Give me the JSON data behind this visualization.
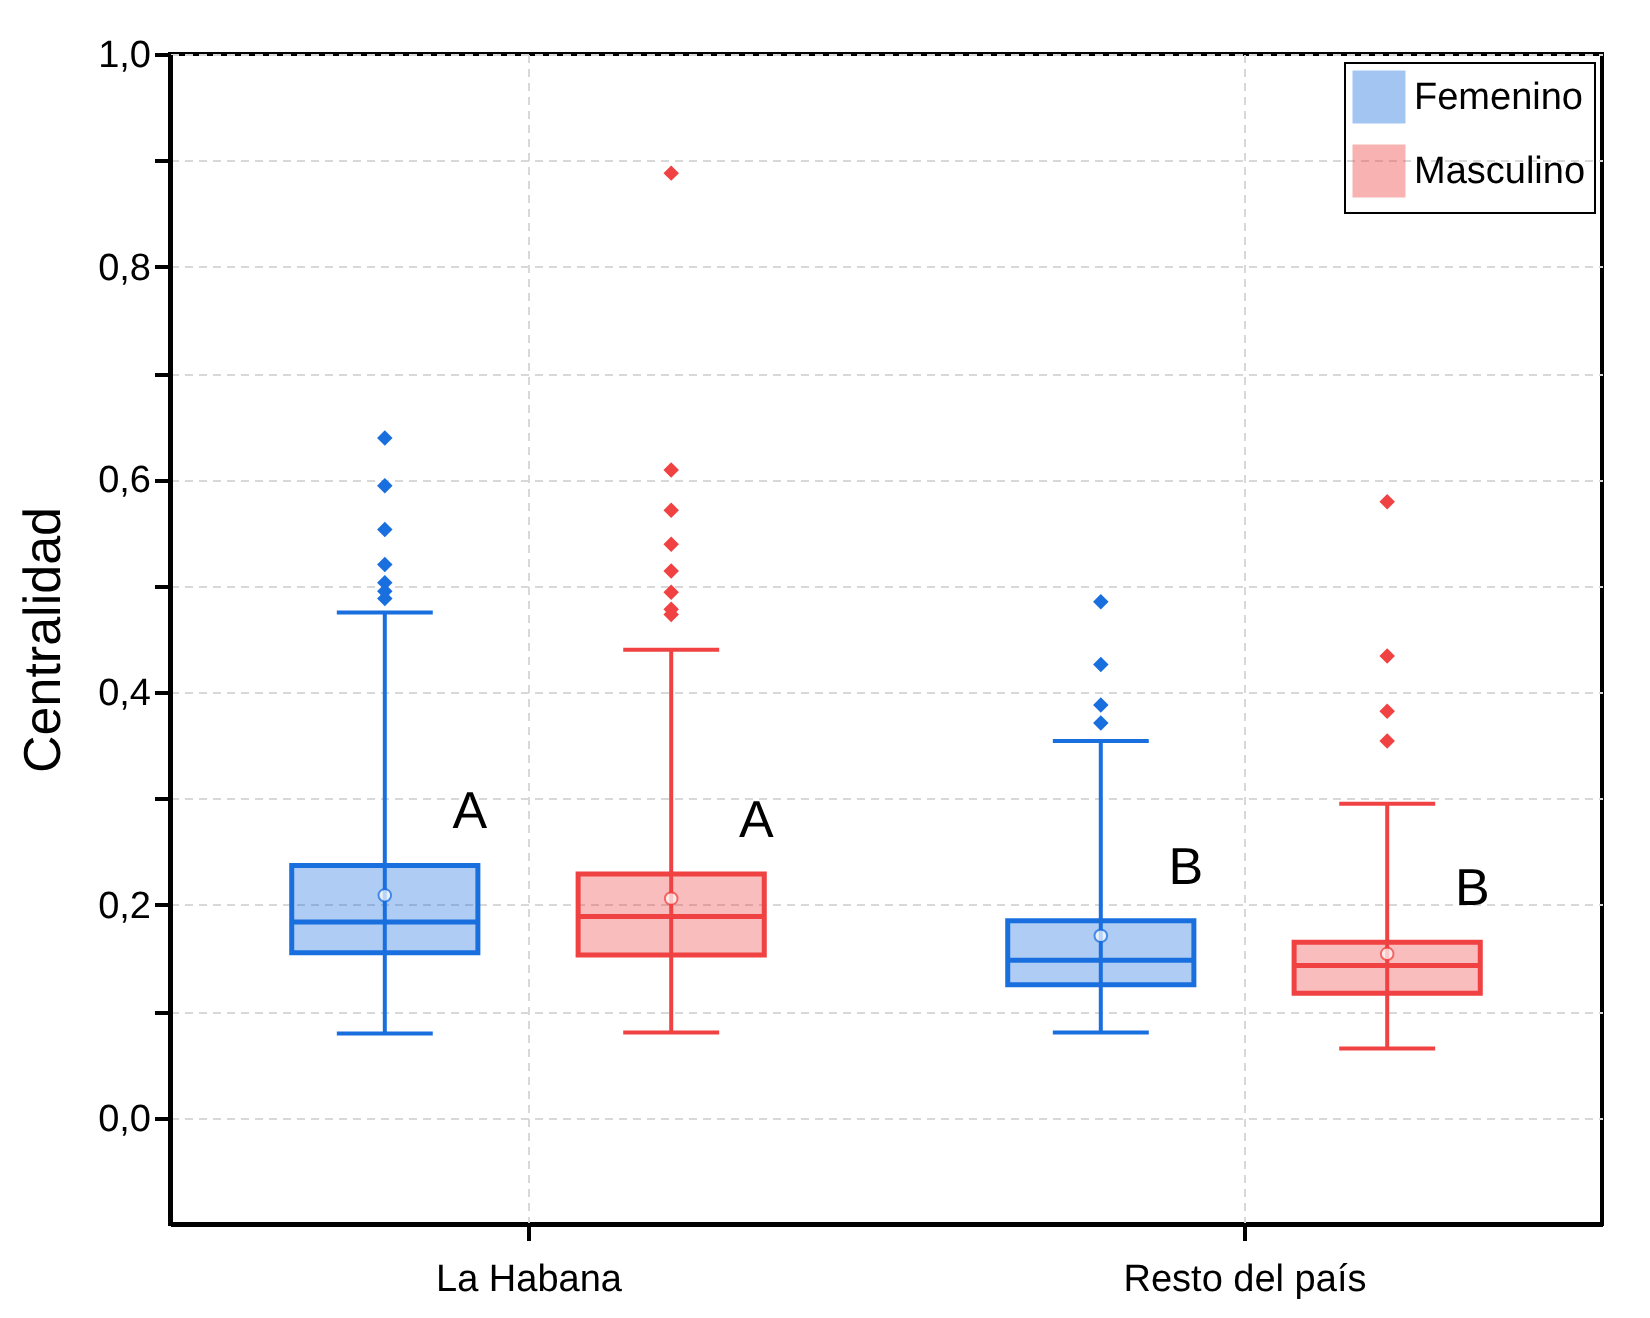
{
  "chart_data": {
    "type": "box",
    "ylabel": "Centralidad",
    "categories": [
      "La Habana",
      "Resto del país"
    ],
    "ylim": [
      -0.1,
      1.0
    ],
    "yticks": [
      {
        "value": 0,
        "label": "0,0"
      },
      {
        "value": 0.1,
        "label": null
      },
      {
        "value": 0.2,
        "label": "0,2"
      },
      {
        "value": 0.3,
        "label": null
      },
      {
        "value": 0.4,
        "label": "0,4"
      },
      {
        "value": 0.5,
        "label": null
      },
      {
        "value": 0.6,
        "label": "0,6"
      },
      {
        "value": 0.7,
        "label": null
      },
      {
        "value": 0.8,
        "label": "0,8"
      },
      {
        "value": 0.9,
        "label": null
      },
      {
        "value": 1.0,
        "label": "1,0"
      }
    ],
    "grid": true,
    "legend": "top right",
    "marker": "diamond",
    "series": [
      {
        "name": "Femenino",
        "color": "#1a6fdf",
        "boxes": [
          {
            "low": 0.079,
            "q1": 0.155,
            "median": 0.184,
            "q3": 0.237,
            "high": 0.475,
            "mean": 0.209,
            "outliers": [
              0.639,
              0.594,
              0.553,
              0.52,
              0.503,
              0.495,
              0.488
            ]
          },
          {
            "low": 0.08,
            "q1": 0.125,
            "median": 0.148,
            "q3": 0.185,
            "high": 0.354,
            "mean": 0.171,
            "outliers": [
              0.485,
              0.426,
              0.388,
              0.371
            ]
          }
        ]
      },
      {
        "name": "Masculino",
        "color": "#f04242",
        "boxes": [
          {
            "low": 0.08,
            "q1": 0.153,
            "median": 0.189,
            "q3": 0.229,
            "high": 0.44,
            "mean": 0.206,
            "outliers": [
              0.888,
              0.609,
              0.571,
              0.539,
              0.514,
              0.494,
              0.478,
              0.473
            ]
          },
          {
            "low": 0.065,
            "q1": 0.117,
            "median": 0.143,
            "q3": 0.165,
            "high": 0.295,
            "mean": 0.154,
            "outliers": [
              0.579,
              0.434,
              0.382,
              0.354
            ]
          }
        ]
      }
    ],
    "annotations": [
      "A",
      "A",
      "B",
      "B"
    ]
  }
}
